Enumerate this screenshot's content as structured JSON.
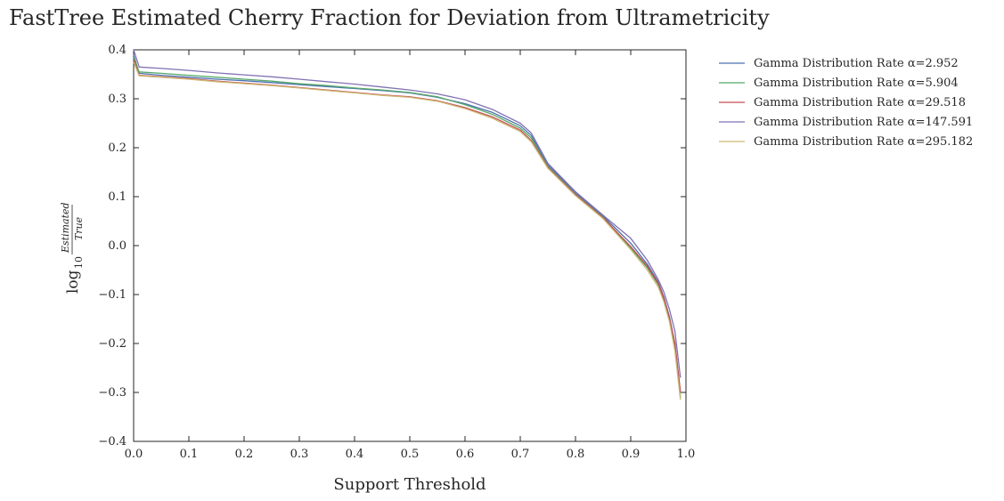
{
  "chart_data": {
    "type": "line",
    "title": "FastTree Estimated Cherry Fraction  for Deviation from Ultrametricity",
    "xlabel": "Support Threshold",
    "ylabel": {
      "prefix": "log",
      "subscript": "10",
      "numerator": "Estimated",
      "denominator": "True"
    },
    "xlim": [
      0.0,
      1.0
    ],
    "ylim": [
      -0.4,
      0.4
    ],
    "xticks": [
      "0.0",
      "0.1",
      "0.2",
      "0.3",
      "0.4",
      "0.5",
      "0.6",
      "0.7",
      "0.8",
      "0.9",
      "1.0"
    ],
    "yticks": [
      "0.4",
      "0.3",
      "0.2",
      "0.1",
      "0.0",
      "−0.1",
      "−0.2",
      "−0.3",
      "−0.4"
    ],
    "grid": false,
    "legend_position": "outside-top-right",
    "x": [
      0.0,
      0.01,
      0.05,
      0.1,
      0.15,
      0.2,
      0.25,
      0.3,
      0.35,
      0.4,
      0.45,
      0.5,
      0.55,
      0.6,
      0.65,
      0.7,
      0.72,
      0.75,
      0.8,
      0.85,
      0.9,
      0.93,
      0.95,
      0.96,
      0.97,
      0.98,
      0.99
    ],
    "series": [
      {
        "name": "Gamma Distribution Rate α=2.952",
        "color": "#4c72b0",
        "values": [
          0.39,
          0.352,
          0.348,
          0.344,
          0.34,
          0.337,
          0.333,
          0.329,
          0.325,
          0.321,
          0.317,
          0.312,
          0.303,
          0.29,
          0.272,
          0.245,
          0.225,
          0.165,
          0.108,
          0.06,
          0.005,
          -0.038,
          -0.075,
          -0.105,
          -0.145,
          -0.2,
          -0.3
        ]
      },
      {
        "name": "Gamma Distribution Rate α=5.904",
        "color": "#55a868",
        "values": [
          0.385,
          0.355,
          0.352,
          0.348,
          0.344,
          0.34,
          0.336,
          0.331,
          0.327,
          0.322,
          0.318,
          0.313,
          0.304,
          0.288,
          0.268,
          0.24,
          0.22,
          0.162,
          0.105,
          0.058,
          -0.005,
          -0.045,
          -0.08,
          -0.11,
          -0.15,
          -0.205,
          -0.31
        ]
      },
      {
        "name": "Gamma Distribution Rate α=29.518",
        "color": "#c44e52",
        "values": [
          0.38,
          0.348,
          0.345,
          0.341,
          0.336,
          0.332,
          0.328,
          0.323,
          0.318,
          0.313,
          0.308,
          0.304,
          0.296,
          0.282,
          0.263,
          0.236,
          0.215,
          0.16,
          0.104,
          0.057,
          -0.002,
          -0.042,
          -0.077,
          -0.108,
          -0.148,
          -0.2,
          -0.3
        ]
      },
      {
        "name": "Gamma Distribution Rate α=147.591",
        "color": "#8172b2",
        "values": [
          0.4,
          0.365,
          0.362,
          0.358,
          0.353,
          0.349,
          0.345,
          0.34,
          0.335,
          0.33,
          0.324,
          0.318,
          0.31,
          0.298,
          0.278,
          0.25,
          0.23,
          0.168,
          0.11,
          0.062,
          0.015,
          -0.03,
          -0.07,
          -0.095,
          -0.13,
          -0.175,
          -0.27
        ]
      },
      {
        "name": "Gamma Distribution Rate α=295.182",
        "color": "#ccb974",
        "values": [
          0.375,
          0.347,
          0.344,
          0.34,
          0.335,
          0.331,
          0.327,
          0.322,
          0.317,
          0.312,
          0.307,
          0.303,
          0.295,
          0.28,
          0.26,
          0.233,
          0.212,
          0.158,
          0.102,
          0.055,
          -0.008,
          -0.05,
          -0.085,
          -0.115,
          -0.155,
          -0.215,
          -0.315
        ]
      }
    ]
  }
}
